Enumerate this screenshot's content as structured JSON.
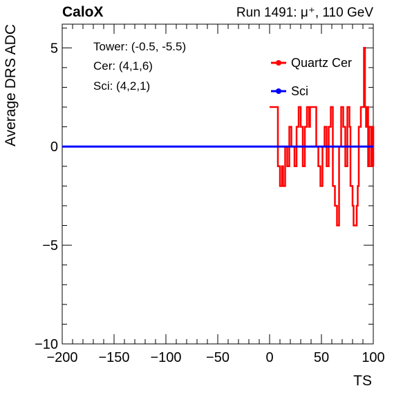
{
  "header": {
    "brand": "CaloX",
    "run": "Run 1491: μ⁺, 110 GeV"
  },
  "info": {
    "tower": "Tower: (-0.5, -5.5)",
    "cer": "Cer: (4,1,6)",
    "sci": "Sci: (4,2,1)"
  },
  "chart_data": {
    "type": "line",
    "xlabel": "TS",
    "ylabel": "Average DRS ADC",
    "xlim": [
      -200,
      100
    ],
    "ylim": [
      -10,
      6.2
    ],
    "x_ticks": [
      -200,
      -150,
      -100,
      -50,
      0,
      50,
      100
    ],
    "x_tick_labels": [
      "−200",
      "−150",
      "−100",
      "−50",
      "0",
      "50",
      "100"
    ],
    "y_ticks": [
      -10,
      -5,
      0,
      5
    ],
    "y_tick_labels": [
      "−10",
      "−5",
      "0",
      "5"
    ],
    "grid": false,
    "legend_position": "top-right",
    "series": [
      {
        "name": "Quartz Cer",
        "color": "#ff0000",
        "step": true,
        "x": [
          1,
          2,
          3,
          4,
          5,
          6,
          7,
          8,
          9,
          10,
          11,
          12,
          13,
          14,
          15,
          16,
          17,
          18,
          19,
          20,
          21,
          22,
          23,
          24,
          25,
          26,
          27,
          28,
          29,
          30,
          31,
          32,
          33,
          34,
          35,
          36,
          37,
          38,
          39,
          40,
          41,
          42,
          43,
          44,
          45,
          46,
          47,
          48,
          49,
          50,
          51,
          52,
          53,
          54,
          55,
          56,
          57,
          58,
          59,
          60,
          61,
          62,
          63,
          64,
          65,
          66,
          67,
          68,
          69,
          70,
          71,
          72,
          73,
          74,
          75,
          76,
          77,
          78,
          79,
          80,
          81,
          82,
          83,
          84,
          85,
          86,
          87,
          88,
          89,
          90,
          91,
          92,
          93,
          94,
          95,
          96,
          97,
          98,
          99,
          100
        ],
        "y": [
          2,
          2,
          2,
          2,
          2,
          2,
          2,
          -1,
          -1,
          -2,
          -2,
          -1,
          -2,
          -2,
          0,
          0,
          -1,
          -1,
          1,
          1,
          0,
          0,
          0,
          -1,
          -1,
          1,
          1,
          2,
          2,
          1,
          1,
          -1,
          -1,
          1,
          1,
          2,
          2,
          1,
          2,
          2,
          2,
          2,
          2,
          2,
          0,
          0,
          -1,
          -1,
          -2,
          -2,
          0,
          0,
          1,
          1,
          -1,
          -1,
          1,
          1,
          2,
          2,
          -2,
          -2,
          -3,
          -3,
          -4,
          -4,
          0,
          0,
          2,
          2,
          1,
          1,
          -1,
          -1,
          2,
          2,
          1,
          -2,
          -2,
          -3,
          -4,
          -4,
          -4,
          -3,
          -2,
          1,
          1,
          2,
          2,
          2,
          5,
          2,
          1,
          2,
          -1,
          1,
          1,
          -1,
          1,
          -1
        ]
      },
      {
        "name": "Sci",
        "color": "#0000ff",
        "x": [
          -200,
          100
        ],
        "y": [
          0,
          0
        ]
      }
    ]
  }
}
